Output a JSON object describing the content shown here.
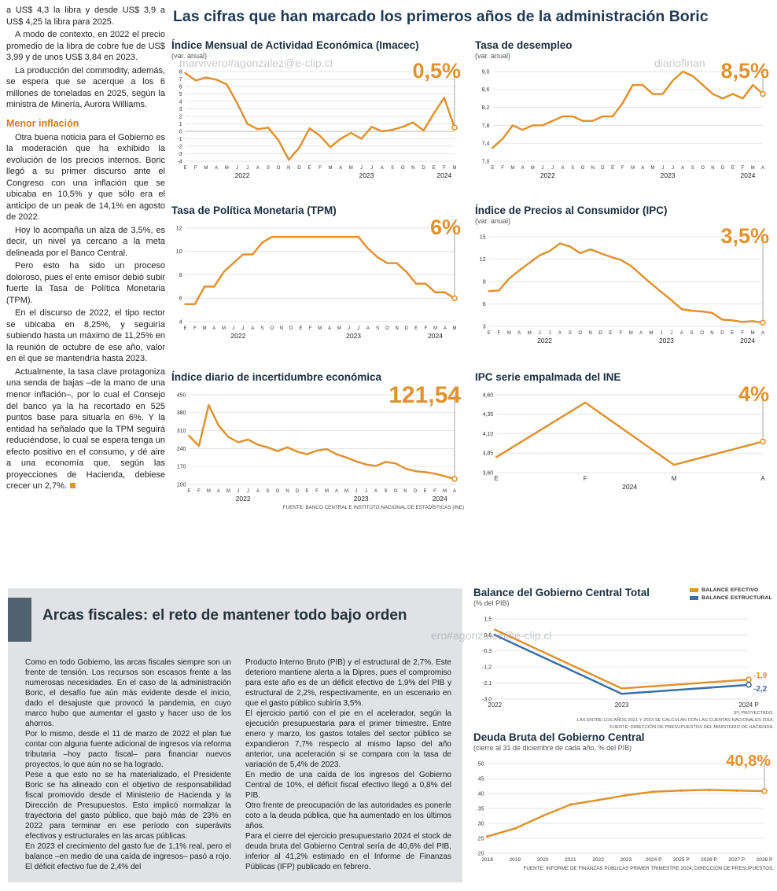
{
  "page": {
    "main_title": "Las cifras que han marcado los primeros años de la administración Boric",
    "watermarks": [
      "marvivero#agonzalez@e-clip.cl",
      "diariofinan",
      "ero#agonzalez@e-clip.cl"
    ]
  },
  "left_column": {
    "intro_paragraphs": [
      "a US$ 4,3 la libra y desde US$ 3,9 a US$ 4,25 la libra para 2025.",
      "A modo de contexto, en 2022 el precio promedio de la libra de cobre fue de US$ 3,99 y de unos US$ 3,84 en 2023.",
      "La producción del commodity, además, se espera que se acerque a los 6 millones de toneladas en 2025, según la ministra de Minería, Aurora Williams."
    ],
    "subhead": "Menor inflación",
    "body_paragraphs": [
      "Otra buena noticia para el Gobierno es la moderación que ha exhibido la evolución de los precios internos. Boric llegó a su primer discurso ante el Congreso con una inflación que se ubicaba en 10,5% y que sólo era el anticipo de un peak de 14,1% en agosto de 2022.",
      "Hoy lo acompaña un alza de 3,5%, es decir, un nivel ya cercano a la meta delineada por el Banco Central.",
      "Pero esto ha sido un proceso doloroso, pues el ente emisor debió subir fuerte la Tasa de Política Monetaria (TPM).",
      "En el discurso de 2022, el tipo rector se ubicaba en 8,25%, y seguiría subiendo hasta un máximo de 11,25% en la reunión de octubre de ese año, valor en el que se mantendría hasta 2023.",
      "Actualmente, la tasa clave protagoniza una senda de bajas –de la mano de una menor inflación–, por lo cual el Consejo del banco ya la ha recortado en 525 puntos base para situarla en 6%. Y la entidad ha señalado que la TPM seguirá reduciéndose, lo cual se espera tenga un efecto positivo en el consumo, y dé aire a una economía que, según las proyecciones de Hacienda, debiese crecer un 2,7%."
    ]
  },
  "fiscal_section": {
    "heading": "Arcas fiscales: el reto de mantener todo bajo orden",
    "col1_paragraphs": [
      "Como en todo Gobierno, las arcas fiscales siempre son un frente de tensión. Los recursos son escasos frente a las numerosas necesidades. En el caso de la administración Boric, el desafío fue aún más evidente desde el inicio, dado el desajuste que provocó la pandemia, en cuyo marco hubo que aumentar el gasto y hacer uso de los ahorros.",
      "Por lo mismo, desde el 11 de marzo de 2022 el plan fue contar con alguna fuente adicional de ingresos vía reforma tributaria –hoy pacto fiscal– para financiar nuevos proyectos, lo que aún no se ha logrado.",
      "Pese a que esto no se ha materializado, el Presidente Boric se ha alineado con el objetivo de responsabilidad fiscal promovido desde el Ministerio de Hacienda y la Dirección de Presupuestos. Esto implicó normalizar la trayectoria del gasto público, que bajó más de 23% en 2022 para terminar en ese período con superávits efectivos y estructurales en las arcas públicas.",
      "En 2023 el crecimiento del gasto fue de 1,1% real, pero el balance –en medio de una caída de ingresos– pasó a rojo. El déficit efectivo fue de 2,4% del"
    ],
    "col2_paragraphs": [
      "Producto Interno Bruto (PIB) y el estructural de 2,7%. Este deterioro mantiene alerta a la Dipres, pues el compromiso para este año es de un déficit efectivo de 1,9% del PIB y estructural de 2,2%, respectivamente, en un escenario en que el gasto público subiría 3,5%.",
      "El ejercicio partió con el pie en el acelerador, según la ejecución presupuestaria para el primer trimestre. Entre enero y marzo, los gastos totales del sector público se expandieron 7,7% respecto al mismo lapso del año anterior, una aceleración si se compara con la tasa de variación de 5,4% de 2023.",
      "En medio de una caída de los ingresos del Gobierno Central de 10%, el déficit fiscal efectivo llegó a 0,8% del PIB.",
      "Otro frente de preocupación de las autoridades es ponerle coto a la deuda pública, que ha aumentado en los últimos años.",
      "Para el cierre del ejercicio presupuestario 2024 el stock de deuda bruta del Gobierno Central sería de 40,6% del PIB, inferior al 41,2% estimado en el Informe de Finanzas Públicas (IFP) publicado en febrero."
    ]
  },
  "chart_data": [
    {
      "id": "imacec",
      "type": "line",
      "title": "Índice Mensual de Actividad Económica (Imacec)",
      "subtitle": "(var. anual)",
      "highlight": "0,5%",
      "ylim": [
        -4,
        8
      ],
      "yticks": [
        8,
        7,
        6,
        5,
        4,
        3,
        2,
        1,
        0,
        -1,
        -2,
        -3,
        -4
      ],
      "ytick_labels": [
        "8",
        "7",
        "6",
        "5",
        "4",
        "3",
        "2",
        "1",
        "0",
        "-1",
        "-2",
        "-3",
        "-4"
      ],
      "x_labels": [
        "E",
        "F",
        "M",
        "A",
        "M",
        "J",
        "J",
        "A",
        "S",
        "O",
        "N",
        "D",
        "E",
        "F",
        "M",
        "A",
        "M",
        "J",
        "J",
        "A",
        "S",
        "O",
        "N",
        "D",
        "E",
        "F",
        "M"
      ],
      "year_groups": [
        {
          "label": "2022",
          "from": 0,
          "to": 11
        },
        {
          "label": "2023",
          "from": 12,
          "to": 23
        },
        {
          "label": "2024",
          "from": 24,
          "to": 26
        }
      ],
      "series": [
        {
          "color": "#E0922F",
          "values": [
            7.8,
            6.8,
            7.2,
            6.9,
            6.3,
            3.8,
            1.0,
            0.3,
            0.5,
            -1.2,
            -3.8,
            -2.2,
            0.4,
            -0.6,
            -2.1,
            -1.0,
            -0.2,
            -1.0,
            0.6,
            0.0,
            0.2,
            0.6,
            1.2,
            0.1,
            2.4,
            4.5,
            0.5
          ]
        }
      ]
    },
    {
      "id": "desempleo",
      "type": "line",
      "title": "Tasa de desempleo",
      "subtitle": "(var. anual)",
      "highlight": "8,5%",
      "ylim": [
        7.0,
        9.0
      ],
      "yticks": [
        9.0,
        8.6,
        8.2,
        7.8,
        7.4,
        7.0
      ],
      "ytick_labels": [
        "9,0",
        "8,6",
        "8,2",
        "7,8",
        "7,4",
        "7,0"
      ],
      "x_labels": [
        "E",
        "F",
        "M",
        "A",
        "M",
        "J",
        "J",
        "A",
        "S",
        "O",
        "N",
        "D",
        "E",
        "F",
        "M",
        "A",
        "M",
        "J",
        "J",
        "A",
        "S",
        "O",
        "N",
        "D",
        "E",
        "F",
        "M",
        "A"
      ],
      "year_groups": [
        {
          "label": "2022",
          "from": 0,
          "to": 11
        },
        {
          "label": "2023",
          "from": 12,
          "to": 23
        },
        {
          "label": "2024",
          "from": 24,
          "to": 27
        }
      ],
      "series": [
        {
          "color": "#E0922F",
          "values": [
            7.3,
            7.5,
            7.8,
            7.7,
            7.8,
            7.8,
            7.9,
            8.0,
            8.0,
            7.9,
            7.9,
            8.0,
            8.0,
            8.3,
            8.7,
            8.7,
            8.5,
            8.5,
            8.8,
            9.0,
            8.9,
            8.7,
            8.5,
            8.4,
            8.5,
            8.4,
            8.7,
            8.5
          ]
        }
      ]
    },
    {
      "id": "tpm",
      "type": "line",
      "title": "Tasa de Política Monetaria (TPM)",
      "highlight": "6%",
      "ylim": [
        4,
        12
      ],
      "yticks": [
        12,
        10,
        8,
        6,
        4
      ],
      "ytick_labels": [
        "12",
        "10",
        "8",
        "6",
        "4"
      ],
      "x_labels": [
        "E",
        "F",
        "M",
        "A",
        "M",
        "J",
        "J",
        "A",
        "S",
        "O",
        "N",
        "D",
        "E",
        "F",
        "M",
        "A",
        "M",
        "J",
        "J",
        "A",
        "S",
        "O",
        "N",
        "D",
        "E",
        "F",
        "M",
        "A",
        "M"
      ],
      "year_groups": [
        {
          "label": "2022",
          "from": 0,
          "to": 11
        },
        {
          "label": "2023",
          "from": 12,
          "to": 23
        },
        {
          "label": "2024",
          "from": 24,
          "to": 28
        }
      ],
      "series": [
        {
          "color": "#E0922F",
          "values": [
            5.5,
            5.5,
            7.0,
            7.0,
            8.25,
            9.0,
            9.75,
            9.75,
            10.75,
            11.25,
            11.25,
            11.25,
            11.25,
            11.25,
            11.25,
            11.25,
            11.25,
            11.25,
            11.25,
            10.25,
            9.5,
            9.0,
            9.0,
            8.25,
            7.25,
            7.25,
            6.5,
            6.5,
            6.0
          ]
        }
      ]
    },
    {
      "id": "ipc",
      "type": "line",
      "title": "Índice de Precios al Consumidor (IPC)",
      "subtitle": "(var. anual)",
      "highlight": "3,5%",
      "ylim": [
        3,
        15
      ],
      "yticks": [
        15,
        12,
        9,
        6,
        3
      ],
      "ytick_labels": [
        "15",
        "12",
        "9",
        "6",
        "3"
      ],
      "x_labels": [
        "E",
        "F",
        "M",
        "A",
        "M",
        "J",
        "J",
        "A",
        "S",
        "O",
        "N",
        "D",
        "E",
        "F",
        "M",
        "A",
        "M",
        "J",
        "J",
        "A",
        "S",
        "O",
        "N",
        "D",
        "E",
        "F",
        "M",
        "A"
      ],
      "year_groups": [
        {
          "label": "2022",
          "from": 0,
          "to": 11
        },
        {
          "label": "2023",
          "from": 12,
          "to": 23
        },
        {
          "label": "2024",
          "from": 24,
          "to": 27
        }
      ],
      "series": [
        {
          "color": "#E0922F",
          "values": [
            7.7,
            7.8,
            9.4,
            10.5,
            11.5,
            12.5,
            13.1,
            14.1,
            13.7,
            12.8,
            13.3,
            12.8,
            12.3,
            11.9,
            11.1,
            9.9,
            8.7,
            7.6,
            6.5,
            5.3,
            5.1,
            5.0,
            4.8,
            3.9,
            3.8,
            3.6,
            3.7,
            3.5
          ]
        }
      ]
    },
    {
      "id": "incertidumbre",
      "type": "line",
      "title": "Índice diario de incertidumbre económica",
      "highlight": "121,54",
      "ylim": [
        100,
        450
      ],
      "yticks": [
        450,
        380,
        310,
        240,
        170,
        100
      ],
      "ytick_labels": [
        "450",
        "380",
        "310",
        "240",
        "170",
        "100"
      ],
      "x_labels": [
        "E",
        "F",
        "M",
        "A",
        "M",
        "J",
        "J",
        "A",
        "S",
        "O",
        "N",
        "D",
        "E",
        "F",
        "M",
        "A",
        "M",
        "J",
        "J",
        "A",
        "S",
        "O",
        "N",
        "D",
        "E",
        "F",
        "M",
        "A"
      ],
      "year_groups": [
        {
          "label": "2022",
          "from": 0,
          "to": 11
        },
        {
          "label": "2023",
          "from": 12,
          "to": 23
        },
        {
          "label": "2024",
          "from": 24,
          "to": 27
        }
      ],
      "series": [
        {
          "color": "#E0922F",
          "values": [
            290,
            250,
            410,
            330,
            285,
            265,
            275,
            255,
            245,
            230,
            245,
            228,
            218,
            232,
            238,
            218,
            205,
            190,
            178,
            172,
            188,
            182,
            162,
            152,
            148,
            142,
            132,
            121.54
          ]
        }
      ],
      "source": "FUENTE: BANCO CENTRAL E INSTITUTO NACIONAL DE ESTADÍSTICAS (INE)"
    },
    {
      "id": "ipc-ine",
      "type": "line",
      "title": "IPC serie empalmada del INE",
      "highlight": "4%",
      "ylim": [
        3.6,
        4.6
      ],
      "yticks": [
        4.6,
        4.35,
        4.1,
        3.85,
        3.6
      ],
      "ytick_labels": [
        "4,60",
        "4,35",
        "4,10",
        "3,85",
        "3,60"
      ],
      "x_labels": [
        "E",
        "F",
        "M",
        "A"
      ],
      "year_groups": [
        {
          "label": "2024",
          "from": 0,
          "to": 3
        }
      ],
      "series": [
        {
          "color": "#E0922F",
          "values": [
            3.8,
            4.5,
            3.7,
            4.0
          ]
        }
      ]
    },
    {
      "id": "balance",
      "type": "line",
      "title": "Balance del Gobierno Central Total",
      "subtitle": "(% del PIB)",
      "ylim": [
        -3.0,
        1.5
      ],
      "yticks": [
        1.5,
        0.6,
        -0.3,
        -1.2,
        -2.1,
        -3.0
      ],
      "ytick_labels": [
        "1,5",
        "0,6",
        "-0,3",
        "-1,2",
        "-2,1",
        "-3,0"
      ],
      "x_labels": [
        "2022",
        "2023",
        "2024 P"
      ],
      "end_line": false,
      "end_labels": [
        "-1,9",
        "-2,2"
      ],
      "series": [
        {
          "name": "BALANCE EFECTIVO",
          "color": "#E0922F",
          "values": [
            0.9,
            -2.4,
            -1.9
          ]
        },
        {
          "name": "BALANCE ESTRUCTURAL",
          "color": "#3A6FA8",
          "values": [
            0.6,
            -2.7,
            -2.2
          ]
        }
      ],
      "footnotes": [
        "(P) PROYECTADO.",
        "LAS ENTRE LOS AÑOS 2021 Y 2023 SE CALCULAN CON LAS CUENTAS NACIONALES 2018.",
        "FUENTE: DIRECCIÓN DE PRESUPUESTOS DEL MINISTERIO DE HACIENDA."
      ]
    },
    {
      "id": "deuda",
      "type": "line",
      "title": "Deuda Bruta del Gobierno Central",
      "subtitle": "(cierre al 31 de diciembre de cada año, % del PIB)",
      "highlight": "40,8%",
      "ylim": [
        20,
        50
      ],
      "yticks": [
        50,
        45,
        40,
        35,
        30,
        25,
        20
      ],
      "ytick_labels": [
        "50",
        "45",
        "40",
        "35",
        "30",
        "25",
        "20"
      ],
      "x_labels": [
        "2018",
        "2019",
        "2020",
        "2021",
        "2022",
        "2023",
        "2024 P",
        "2025 P",
        "2026 P",
        "2027 P",
        "2028 P"
      ],
      "markers": true,
      "series": [
        {
          "color": "#E0922F",
          "values": [
            25.6,
            28.3,
            32.5,
            36.3,
            37.8,
            39.4,
            40.6,
            41.0,
            41.2,
            41.0,
            40.8
          ]
        }
      ],
      "source": "FUENTE: INFORME DE FINANZAS PÚBLICAS PRIMER TRIMESTRE 2024, DIRECCIÓN DE PRESUPUESTOS."
    }
  ]
}
